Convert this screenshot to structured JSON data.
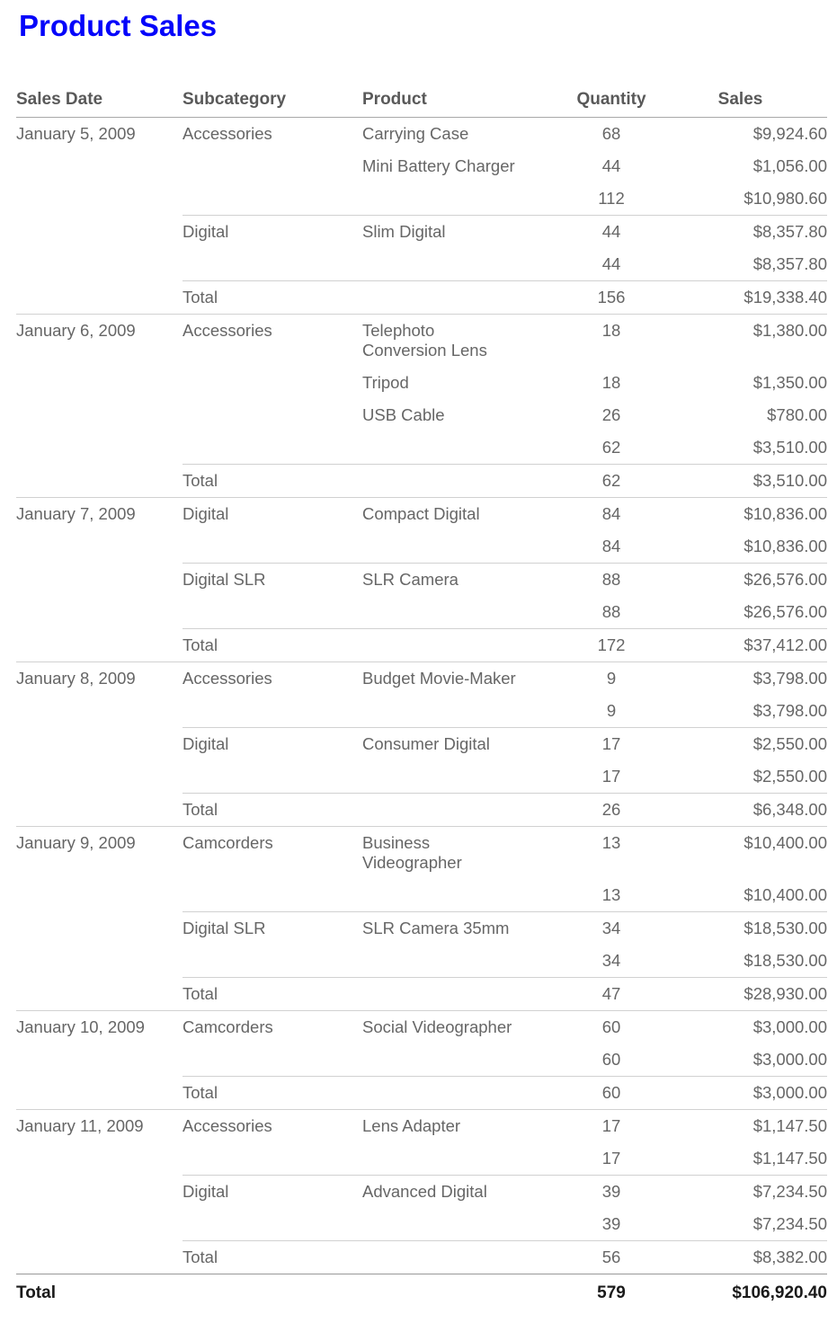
{
  "title": "Product Sales",
  "colors": {
    "title": "#0505fa",
    "header_text": "#595959",
    "body_text": "#666666",
    "grand_text": "#1a1a1a",
    "header_rule": "#a8a8a8",
    "group_rule": "#d1d1d1",
    "grand_rule": "#999999"
  },
  "table": {
    "columns": [
      "Sales Date",
      "Subcategory",
      "Product",
      "Quantity",
      "Sales"
    ],
    "date_groups": [
      {
        "date": "January 5, 2009",
        "subcategories": [
          {
            "name": "Accessories",
            "products": [
              {
                "product": "Carrying Case",
                "quantity": "68",
                "sales": "$9,924.60"
              },
              {
                "product": "Mini Battery Charger",
                "quantity": "44",
                "sales": "$1,056.00"
              }
            ],
            "subtotal": {
              "quantity": "112",
              "sales": "$10,980.60"
            }
          },
          {
            "name": "Digital",
            "products": [
              {
                "product": "Slim Digital",
                "quantity": "44",
                "sales": "$8,357.80"
              }
            ],
            "subtotal": {
              "quantity": "44",
              "sales": "$8,357.80"
            }
          }
        ],
        "total": {
          "label": "Total",
          "quantity": "156",
          "sales": "$19,338.40"
        }
      },
      {
        "date": "January 6, 2009",
        "subcategories": [
          {
            "name": "Accessories",
            "products": [
              {
                "product": "Telephoto Conversion Lens",
                "quantity": "18",
                "sales": "$1,380.00"
              },
              {
                "product": "Tripod",
                "quantity": "18",
                "sales": "$1,350.00"
              },
              {
                "product": "USB Cable",
                "quantity": "26",
                "sales": "$780.00"
              }
            ],
            "subtotal": {
              "quantity": "62",
              "sales": "$3,510.00"
            }
          }
        ],
        "total": {
          "label": "Total",
          "quantity": "62",
          "sales": "$3,510.00"
        }
      },
      {
        "date": "January 7, 2009",
        "subcategories": [
          {
            "name": "Digital",
            "products": [
              {
                "product": "Compact Digital",
                "quantity": "84",
                "sales": "$10,836.00"
              }
            ],
            "subtotal": {
              "quantity": "84",
              "sales": "$10,836.00"
            }
          },
          {
            "name": "Digital SLR",
            "products": [
              {
                "product": "SLR Camera",
                "quantity": "88",
                "sales": "$26,576.00"
              }
            ],
            "subtotal": {
              "quantity": "88",
              "sales": "$26,576.00"
            }
          }
        ],
        "total": {
          "label": "Total",
          "quantity": "172",
          "sales": "$37,412.00"
        }
      },
      {
        "date": "January 8, 2009",
        "subcategories": [
          {
            "name": "Accessories",
            "products": [
              {
                "product": "Budget Movie-Maker",
                "quantity": "9",
                "sales": "$3,798.00"
              }
            ],
            "subtotal": {
              "quantity": "9",
              "sales": "$3,798.00"
            }
          },
          {
            "name": "Digital",
            "products": [
              {
                "product": "Consumer Digital",
                "quantity": "17",
                "sales": "$2,550.00"
              }
            ],
            "subtotal": {
              "quantity": "17",
              "sales": "$2,550.00"
            }
          }
        ],
        "total": {
          "label": "Total",
          "quantity": "26",
          "sales": "$6,348.00"
        }
      },
      {
        "date": "January 9, 2009",
        "subcategories": [
          {
            "name": "Camcorders",
            "products": [
              {
                "product": "Business Videographer",
                "quantity": "13",
                "sales": "$10,400.00"
              }
            ],
            "subtotal": {
              "quantity": "13",
              "sales": "$10,400.00"
            }
          },
          {
            "name": "Digital SLR",
            "products": [
              {
                "product": "SLR Camera 35mm",
                "quantity": "34",
                "sales": "$18,530.00"
              }
            ],
            "subtotal": {
              "quantity": "34",
              "sales": "$18,530.00"
            }
          }
        ],
        "total": {
          "label": "Total",
          "quantity": "47",
          "sales": "$28,930.00"
        }
      },
      {
        "date": "January 10, 2009",
        "subcategories": [
          {
            "name": "Camcorders",
            "products": [
              {
                "product": "Social Videographer",
                "quantity": "60",
                "sales": "$3,000.00"
              }
            ],
            "subtotal": {
              "quantity": "60",
              "sales": "$3,000.00"
            }
          }
        ],
        "total": {
          "label": "Total",
          "quantity": "60",
          "sales": "$3,000.00"
        }
      },
      {
        "date": "January 11, 2009",
        "subcategories": [
          {
            "name": "Accessories",
            "products": [
              {
                "product": "Lens Adapter",
                "quantity": "17",
                "sales": "$1,147.50"
              }
            ],
            "subtotal": {
              "quantity": "17",
              "sales": "$1,147.50"
            }
          },
          {
            "name": "Digital",
            "products": [
              {
                "product": "Advanced Digital",
                "quantity": "39",
                "sales": "$7,234.50"
              }
            ],
            "subtotal": {
              "quantity": "39",
              "sales": "$7,234.50"
            }
          }
        ],
        "total": {
          "label": "Total",
          "quantity": "56",
          "sales": "$8,382.00"
        }
      }
    ],
    "grand_total": {
      "label": "Total",
      "quantity": "579",
      "sales": "$106,920.40"
    }
  }
}
